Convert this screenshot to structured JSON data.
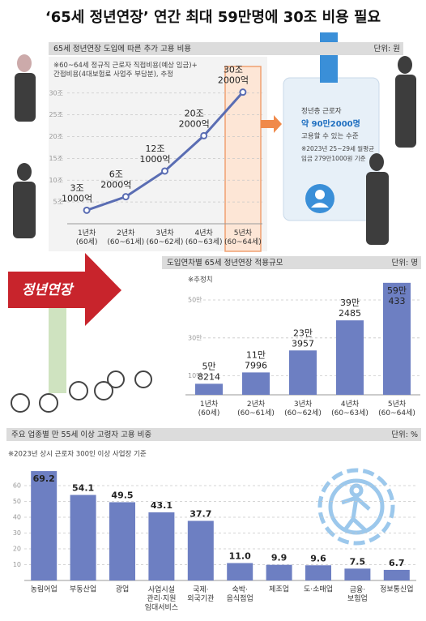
{
  "title": "‘65세 정년연장’ 연간 최대 59만명에 30조 비용 필요",
  "sign": "정년연장",
  "card": [
    "정년층 근로자",
    "약 90만2000명",
    "고용할 수 있는 수준",
    "※2023년 25~29세 월평균",
    "임금 279만1000원 기준"
  ],
  "chart_data": [
    {
      "type": "line",
      "title": "65세 정년연장 도입에 따른 추가 고용 비용",
      "unit": "단위: 원",
      "note": "※60~64세 정규직 근로자 직접비용(예상 임금)+\n간접비용(4대보험료 사업주 부담분), 추정",
      "categories": [
        "1년차\n(60세)",
        "2년차\n(60~61세)",
        "3년차\n(60~62세)",
        "4년차\n(60~63세)",
        "5년차\n(60~64세)"
      ],
      "values": [
        3.1,
        6.2,
        12.1,
        20.2,
        30.2
      ],
      "value_labels": [
        "3조\n1000억",
        "6조\n2000억",
        "12조\n1000억",
        "20조\n2000억",
        "30조\n2000억"
      ],
      "color": "#5a6db3",
      "ylim": [
        0,
        32
      ],
      "yticks": [
        {
          "value": 5,
          "label": "5조"
        },
        {
          "value": 10,
          "label": "10조"
        },
        {
          "value": 15,
          "label": "15조"
        },
        {
          "value": 20,
          "label": "20조"
        },
        {
          "value": 25,
          "label": "25조"
        },
        {
          "value": 30,
          "label": "30조"
        }
      ],
      "grid": true
    },
    {
      "type": "bar",
      "title": "도입연차별 65세 정년연장 적용규모",
      "unit": "단위: 명",
      "note": "※추정치",
      "categories": [
        "1년차\n(60세)",
        "2년차\n(60~61세)",
        "3년차\n(60~62세)",
        "4년차\n(60~63세)",
        "5년차\n(60~64세)"
      ],
      "values": [
        58214,
        117996,
        233957,
        392485,
        590433
      ],
      "value_labels": [
        "5만\n8214",
        "11만\n7996",
        "23만\n3957",
        "39만\n2485",
        "59만\n433"
      ],
      "color": "#6d7fc2",
      "ylim": [
        0,
        600000
      ],
      "yticks": [
        {
          "value": 100000,
          "label": "10만"
        },
        {
          "value": 300000,
          "label": "30만"
        },
        {
          "value": 500000,
          "label": "50만"
        }
      ],
      "grid": true
    },
    {
      "type": "bar",
      "title": "주요 업종별 만 55세 이상 고령자 고용 비중",
      "unit": "단위: %",
      "note": "※2023년 상시 근로자 300인 이상 사업장 기준",
      "categories": [
        "농림어업",
        "부동산업",
        "광업",
        "사업시설\n관리·지원\n임대서비스",
        "국제·\n외국기관",
        "숙박·\n음식점업",
        "제조업",
        "도·소매업",
        "금융·\n보험업",
        "정보통신업"
      ],
      "values": [
        69.2,
        54.1,
        49.5,
        43.1,
        37.7,
        11,
        9.9,
        9.6,
        7.5,
        6.7
      ],
      "value_labels": [
        "69.2",
        "54.1",
        "49.5",
        "43.1",
        "37.7",
        "11.0",
        "9.9",
        "9.6",
        "7.5",
        "6.7"
      ],
      "color": "#6d7fc2",
      "ylim": [
        0,
        70
      ],
      "yticks": [
        10,
        20,
        30,
        40,
        50,
        60
      ],
      "grid": true
    }
  ]
}
